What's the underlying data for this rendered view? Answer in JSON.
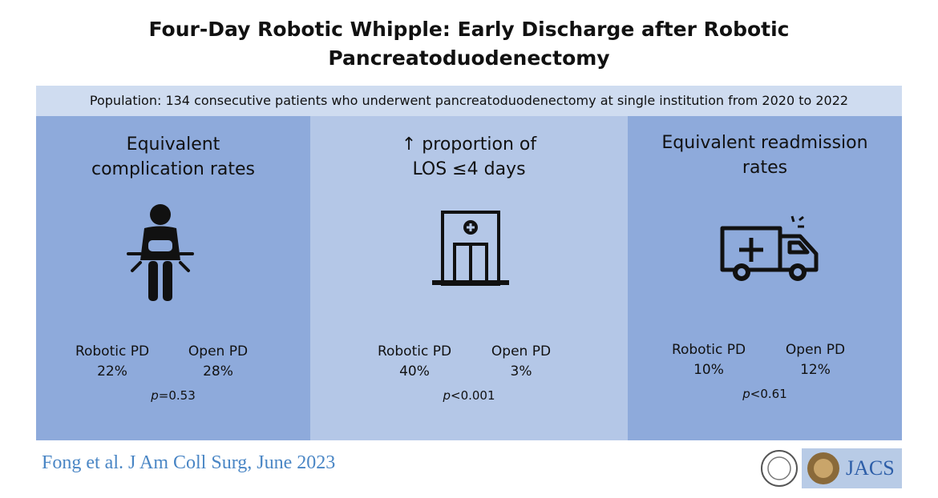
{
  "header": {
    "title_lines": [
      "Four-Day Robotic Whipple: Early Discharge after Robotic",
      "Pancreatoduodenectomy"
    ]
  },
  "population": "Population: 134 consecutive patients who underwent pancreatoduodenectomy at single institution from 2020 to 2022",
  "panels": [
    {
      "heading_lines": [
        "Equivalent",
        "complication rates"
      ],
      "groups": [
        {
          "label": "Robotic PD",
          "value": "22%"
        },
        {
          "label": "Open PD",
          "value": "28%"
        }
      ],
      "p_symbol": "p",
      "p_text": "=0.53"
    },
    {
      "heading_lines": [
        "↑ proportion of",
        "LOS ≤4 days"
      ],
      "groups": [
        {
          "label": "Robotic PD",
          "value": "40%"
        },
        {
          "label": "Open PD",
          "value": "3%"
        }
      ],
      "p_symbol": "p",
      "p_text": "<0.001"
    },
    {
      "heading_lines": [
        "Equivalent readmission",
        "rates"
      ],
      "groups": [
        {
          "label": "Robotic PD",
          "value": "10%"
        },
        {
          "label": "Open PD",
          "value": "12%"
        }
      ],
      "p_symbol": "p",
      "p_text": "<0.61"
    }
  ],
  "footer": {
    "citation": "Fong et al. J Am Coll Surg, June 2023",
    "logo_text": "JACS"
  }
}
